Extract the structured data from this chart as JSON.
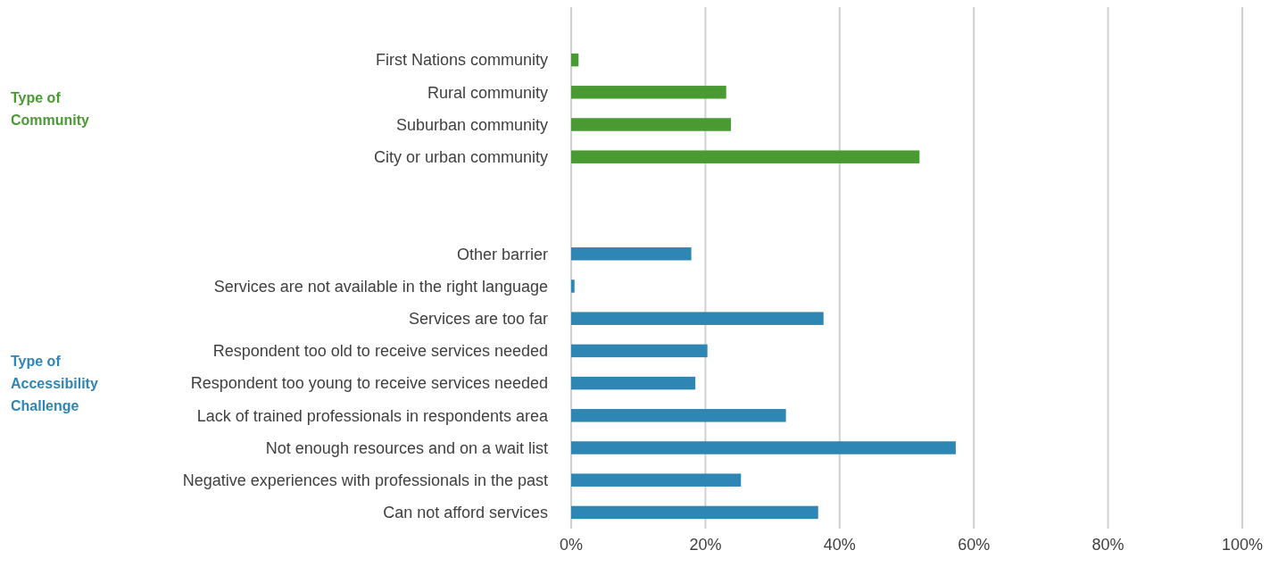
{
  "chart_data": {
    "type": "bar",
    "orientation": "horizontal",
    "categories": [
      "First Nations community",
      "Rural community",
      "Suburban community",
      "City or urban community",
      null,
      null,
      "Other barrier",
      "Services are not available in the right language",
      "Services are too far",
      "Respondent too old to receive services needed",
      "Respondent too young to receive services needed",
      "Lack of trained professionals in respondents area",
      "Not enough resources and on a wait list",
      "Negative experiences with professionals in the past",
      "Can not afford services"
    ],
    "values": [
      1.1,
      23.1,
      23.8,
      51.9,
      null,
      null,
      17.9,
      0.5,
      37.6,
      20.3,
      18.5,
      32,
      57.3,
      25.3,
      36.8
    ],
    "colors": [
      "#4a9a34",
      "#4a9a34",
      "#4a9a34",
      "#4a9a34",
      null,
      null,
      "#2e86b4",
      "#2e86b4",
      "#2e86b4",
      "#2e86b4",
      "#2e86b4",
      "#2e86b4",
      "#2e86b4",
      "#2e86b4",
      "#2e86b4"
    ],
    "xlim": [
      0,
      100
    ],
    "xticks": [
      {
        "value": 0,
        "label": "0%"
      },
      {
        "value": 20,
        "label": "20%"
      },
      {
        "value": 40,
        "label": "40%"
      },
      {
        "value": 60,
        "label": "60%"
      },
      {
        "value": 80,
        "label": "80%"
      },
      {
        "value": 100,
        "label": "100%"
      }
    ],
    "grid": "x",
    "annotations": [
      "Type of Community",
      "Type of Accessibility Challenge"
    ]
  }
}
